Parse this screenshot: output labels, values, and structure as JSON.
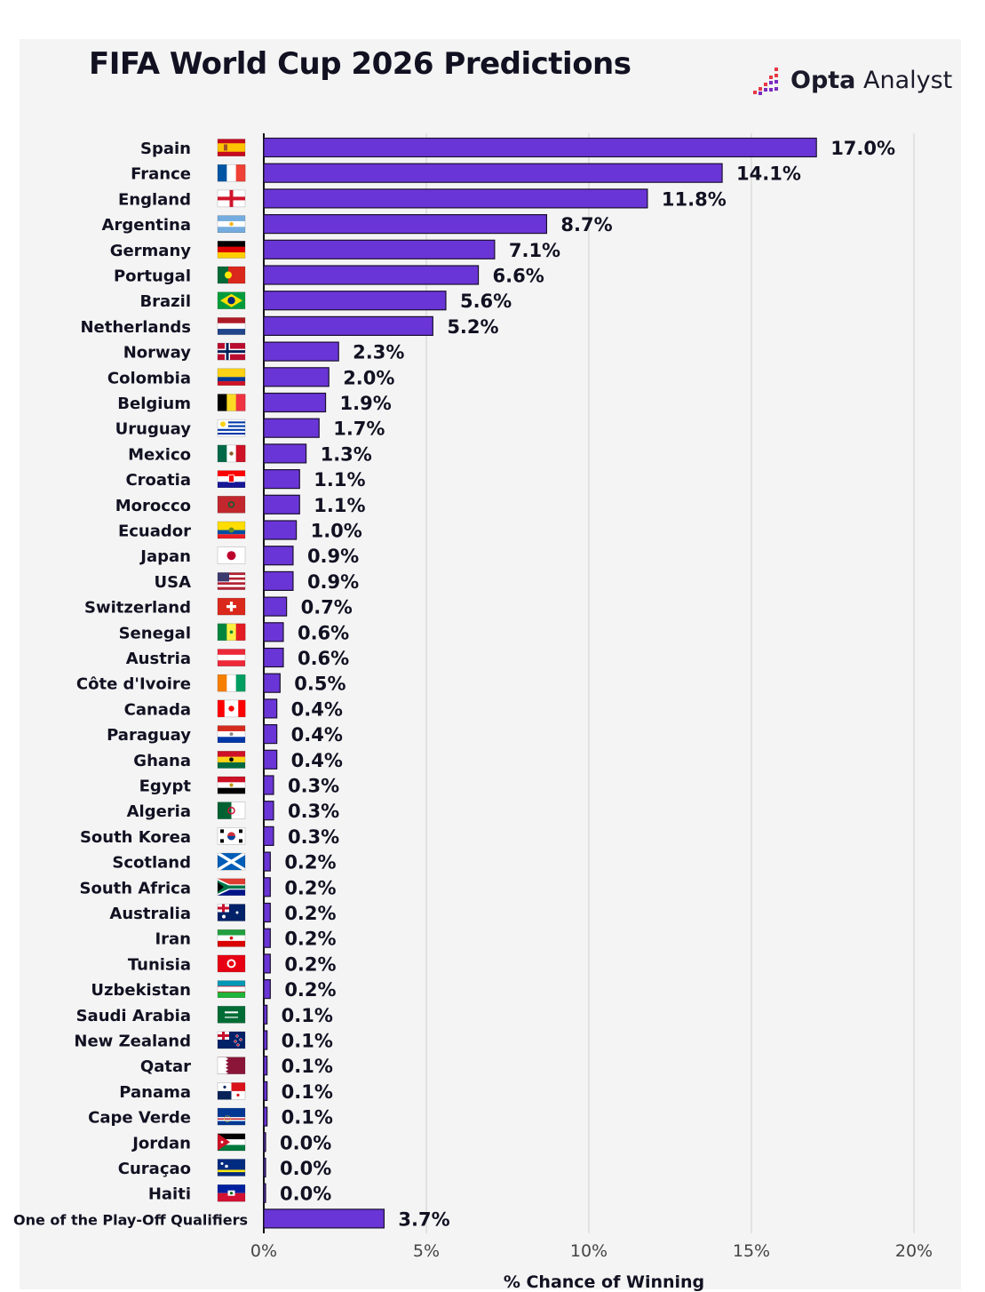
{
  "title": "FIFA World Cup 2026 Predictions",
  "brand": {
    "bold": "Opta",
    "rest": " Analyst"
  },
  "colors": {
    "bar": "#6a35d6",
    "bar_stroke": "#1a1030",
    "card": "#f4f4f4",
    "text": "#111122",
    "grid": "#d6d6d6"
  },
  "chart_data": {
    "type": "bar",
    "orientation": "horizontal",
    "title": "FIFA World Cup 2026 Predictions",
    "xlabel": "% Chance of Winning",
    "ylabel": "",
    "xlim": [
      0,
      20
    ],
    "xticks": [
      0,
      5,
      10,
      15,
      20
    ],
    "xtick_labels": [
      "0%",
      "5%",
      "10%",
      "15%",
      "20%"
    ],
    "grid": true,
    "categories": [
      "Spain",
      "France",
      "England",
      "Argentina",
      "Germany",
      "Portugal",
      "Brazil",
      "Netherlands",
      "Norway",
      "Colombia",
      "Belgium",
      "Uruguay",
      "Mexico",
      "Croatia",
      "Morocco",
      "Ecuador",
      "Japan",
      "USA",
      "Switzerland",
      "Senegal",
      "Austria",
      "Côte d'Ivoire",
      "Canada",
      "Paraguay",
      "Ghana",
      "Egypt",
      "Algeria",
      "South Korea",
      "Scotland",
      "South Africa",
      "Australia",
      "Iran",
      "Tunisia",
      "Uzbekistan",
      "Saudi Arabia",
      "New Zealand",
      "Qatar",
      "Panama",
      "Cape Verde",
      "Jordan",
      "Curaçao",
      "Haiti",
      "One of the Play-Off Qualifiers"
    ],
    "values": [
      17.0,
      14.1,
      11.8,
      8.7,
      7.1,
      6.6,
      5.6,
      5.2,
      2.3,
      2.0,
      1.9,
      1.7,
      1.3,
      1.1,
      1.1,
      1.0,
      0.9,
      0.9,
      0.7,
      0.6,
      0.6,
      0.5,
      0.4,
      0.4,
      0.4,
      0.3,
      0.3,
      0.3,
      0.2,
      0.2,
      0.2,
      0.2,
      0.2,
      0.2,
      0.1,
      0.1,
      0.1,
      0.1,
      0.1,
      0.0,
      0.0,
      0.0,
      3.7
    ],
    "value_labels": [
      "17.0%",
      "14.1%",
      "11.8%",
      "8.7%",
      "7.1%",
      "6.6%",
      "5.6%",
      "5.2%",
      "2.3%",
      "2.0%",
      "1.9%",
      "1.7%",
      "1.3%",
      "1.1%",
      "1.1%",
      "1.0%",
      "0.9%",
      "0.9%",
      "0.7%",
      "0.6%",
      "0.6%",
      "0.5%",
      "0.4%",
      "0.4%",
      "0.4%",
      "0.3%",
      "0.3%",
      "0.3%",
      "0.2%",
      "0.2%",
      "0.2%",
      "0.2%",
      "0.2%",
      "0.2%",
      "0.1%",
      "0.1%",
      "0.1%",
      "0.1%",
      "0.1%",
      "0.0%",
      "0.0%",
      "0.0%",
      "3.7%"
    ],
    "flag_icons": [
      "spain-flag-icon",
      "france-flag-icon",
      "england-flag-icon",
      "argentina-flag-icon",
      "germany-flag-icon",
      "portugal-flag-icon",
      "brazil-flag-icon",
      "netherlands-flag-icon",
      "norway-flag-icon",
      "colombia-flag-icon",
      "belgium-flag-icon",
      "uruguay-flag-icon",
      "mexico-flag-icon",
      "croatia-flag-icon",
      "morocco-flag-icon",
      "ecuador-flag-icon",
      "japan-flag-icon",
      "usa-flag-icon",
      "switzerland-flag-icon",
      "senegal-flag-icon",
      "austria-flag-icon",
      "cote-divoire-flag-icon",
      "canada-flag-icon",
      "paraguay-flag-icon",
      "ghana-flag-icon",
      "egypt-flag-icon",
      "algeria-flag-icon",
      "south-korea-flag-icon",
      "scotland-flag-icon",
      "south-africa-flag-icon",
      "australia-flag-icon",
      "iran-flag-icon",
      "tunisia-flag-icon",
      "uzbekistan-flag-icon",
      "saudi-arabia-flag-icon",
      "new-zealand-flag-icon",
      "qatar-flag-icon",
      "panama-flag-icon",
      "cape-verde-flag-icon",
      "jordan-flag-icon",
      "curacao-flag-icon",
      "haiti-flag-icon",
      ""
    ]
  }
}
